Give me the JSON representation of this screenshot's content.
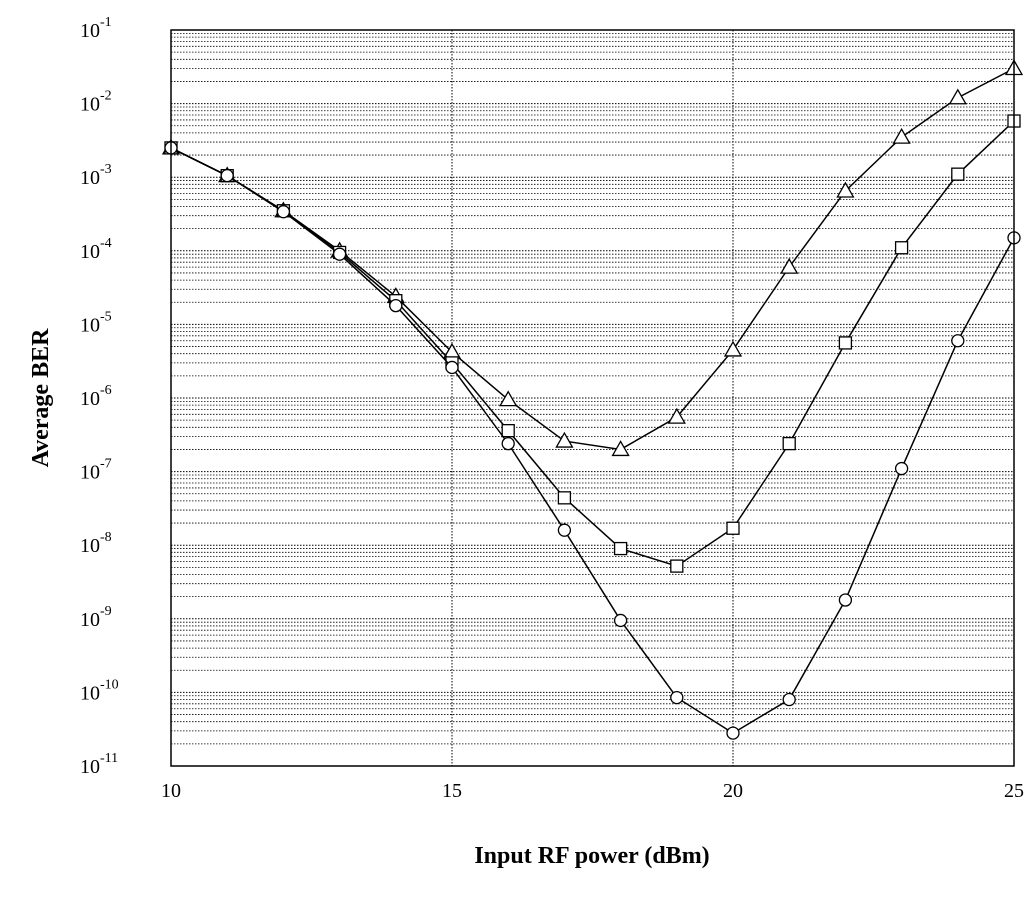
{
  "chart_data": {
    "type": "line",
    "title": "",
    "xlabel": "Input RF power (dBm)",
    "ylabel": "Average BER",
    "xlim": [
      10,
      25
    ],
    "ylim": [
      1e-11,
      0.1
    ],
    "y_scale": "log",
    "grid": true,
    "x_ticks": [
      "10",
      "15",
      "20",
      "25"
    ],
    "y_ticks": [
      {
        "base": "10",
        "exp": "-1"
      },
      {
        "base": "10",
        "exp": "-2"
      },
      {
        "base": "10",
        "exp": "-3"
      },
      {
        "base": "10",
        "exp": "-4"
      },
      {
        "base": "10",
        "exp": "-5"
      },
      {
        "base": "10",
        "exp": "-6"
      },
      {
        "base": "10",
        "exp": "-7"
      },
      {
        "base": "10",
        "exp": "-8"
      },
      {
        "base": "10",
        "exp": "-9"
      },
      {
        "base": "10",
        "exp": "-10"
      },
      {
        "base": "10",
        "exp": "-11"
      }
    ],
    "x": [
      10,
      11,
      12,
      13,
      14,
      15,
      16,
      17,
      18,
      19,
      20,
      21,
      22,
      23,
      24,
      25
    ],
    "series": [
      {
        "marker": "triangle",
        "values": [
          0.0025,
          0.00105,
          0.00035,
          0.0001,
          2.4e-05,
          4.2e-06,
          9.5e-07,
          2.6e-07,
          2e-07,
          5.5e-07,
          4.5e-06,
          6e-05,
          0.00065,
          0.0035,
          0.012,
          0.03
        ]
      },
      {
        "marker": "square",
        "values": [
          0.0025,
          0.00105,
          0.00035,
          9.5e-05,
          2.1e-05,
          3e-06,
          3.6e-07,
          4.4e-08,
          9e-09,
          5.2e-09,
          1.7e-08,
          2.4e-07,
          5.6e-06,
          0.00011,
          0.0011,
          0.0058
        ]
      },
      {
        "marker": "circle",
        "values": [
          0.0025,
          0.00105,
          0.00034,
          9e-05,
          1.8e-05,
          2.6e-06,
          2.4e-07,
          1.6e-08,
          9.5e-10,
          8.5e-11,
          2.8e-11,
          8e-11,
          1.8e-09,
          1.1e-07,
          6e-06,
          0.00015
        ]
      }
    ]
  }
}
